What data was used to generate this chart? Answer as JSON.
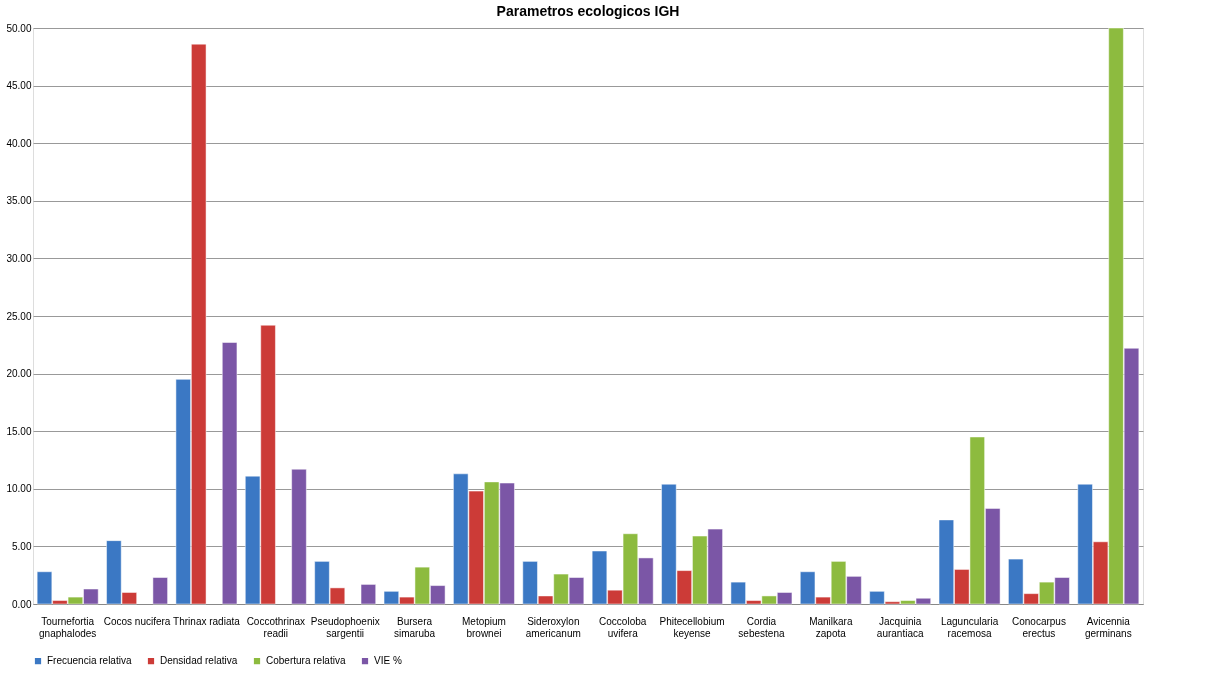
{
  "chart_data": {
    "type": "bar",
    "title": "Parametros ecologicos IGH",
    "categories": [
      "Tournefortia gnaphalodes",
      "Cocos nucifera",
      "Thrinax radiata",
      "Coccothrinax readii",
      "Pseudophoenix sargentii",
      "Bursera simaruba",
      "Metopium brownei",
      "Sideroxylon americanum",
      "Coccoloba uvifera",
      "Phitecellobium keyense",
      "Cordia sebestena",
      "Manilkara zapota",
      "Jacquinia aurantiaca",
      "Laguncularia racemosa",
      "Conocarpus erectus",
      "Avicennia germinans"
    ],
    "series": [
      {
        "name": "Frecuencia relativa",
        "color": "#3b78c4",
        "values": [
          2.8,
          5.5,
          19.5,
          11.1,
          3.7,
          1.1,
          11.3,
          3.7,
          4.6,
          10.4,
          1.9,
          2.8,
          1.1,
          7.3,
          3.9,
          10.4
        ]
      },
      {
        "name": "Densidad relativa",
        "color": "#cc3b37",
        "values": [
          0.3,
          1.0,
          48.6,
          24.2,
          1.4,
          0.6,
          9.8,
          0.7,
          1.2,
          2.9,
          0.3,
          0.6,
          0.2,
          3.0,
          0.9,
          5.4
        ]
      },
      {
        "name": "Cobertura relativa",
        "color": "#8dbb3f",
        "values": [
          0.6,
          null,
          null,
          null,
          null,
          3.2,
          10.6,
          2.6,
          6.1,
          5.9,
          0.7,
          3.7,
          0.3,
          14.5,
          1.9,
          50
        ]
      },
      {
        "name": "VIE %",
        "color": "#7b56a6",
        "values": [
          1.3,
          2.3,
          22.7,
          11.7,
          1.7,
          1.6,
          10.5,
          2.3,
          4.0,
          6.5,
          1.0,
          2.4,
          0.5,
          8.3,
          2.3,
          22.2
        ]
      }
    ],
    "ylim": [
      0,
      50
    ],
    "yticks": [
      {
        "value": 0,
        "label": "0.00"
      },
      {
        "value": 5,
        "label": "5.00"
      },
      {
        "value": 10,
        "label": "10.00"
      },
      {
        "value": 15,
        "label": "15.00"
      },
      {
        "value": 20,
        "label": "20.00"
      },
      {
        "value": 25,
        "label": "25.00"
      },
      {
        "value": 30,
        "label": "30.00"
      },
      {
        "value": 35,
        "label": "35.00"
      },
      {
        "value": 40,
        "label": "40.00"
      },
      {
        "value": 45,
        "label": "45.00"
      },
      {
        "value": 50,
        "label": "50.00"
      }
    ],
    "grid": "y",
    "legend": "bottom"
  }
}
